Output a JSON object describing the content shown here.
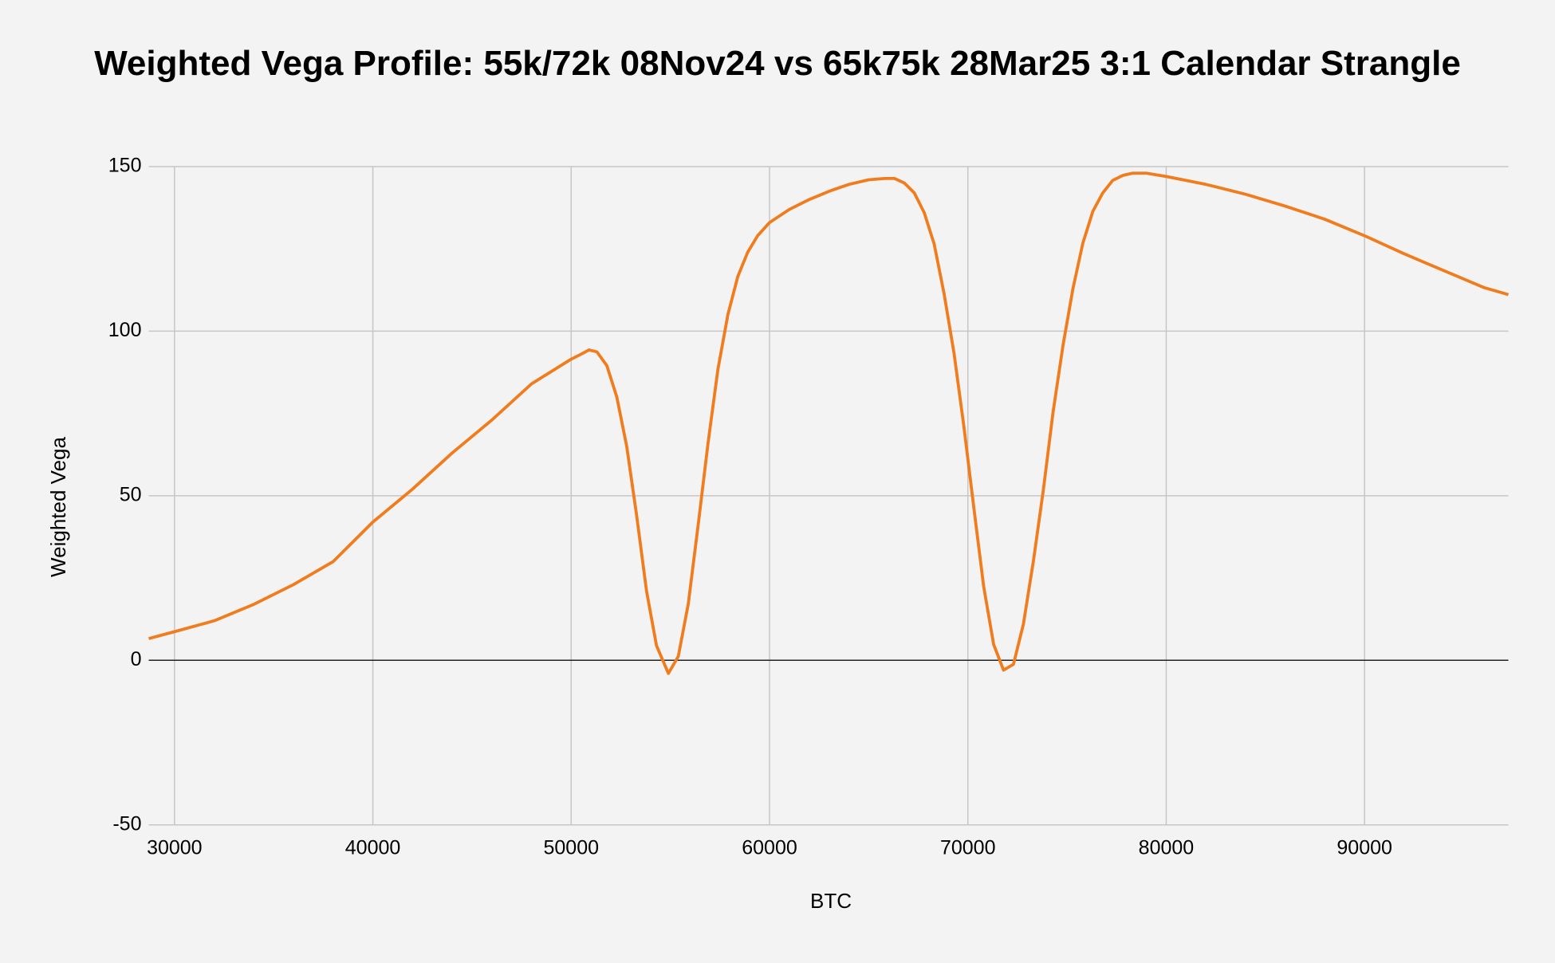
{
  "chart_data": {
    "type": "line",
    "title": "Weighted Vega Profile: 55k/72k 08Nov24 vs 65k75k 28Mar25 3:1 Calendar Strangle",
    "x_label": "BTC",
    "y_label": "Weighted Vega",
    "x": [
      28700,
      30000,
      32000,
      34000,
      36000,
      38000,
      40000,
      42000,
      44000,
      46000,
      48000,
      50000,
      50500,
      50900,
      51300,
      51800,
      52300,
      52800,
      53300,
      53800,
      54300,
      54900,
      55400,
      55900,
      56400,
      56900,
      57400,
      57900,
      58400,
      58900,
      59400,
      60000,
      61000,
      62000,
      63000,
      64000,
      65000,
      65800,
      66300,
      66800,
      67300,
      67800,
      68300,
      68800,
      69300,
      69800,
      70300,
      70800,
      71300,
      71800,
      72300,
      72800,
      73300,
      73800,
      74300,
      74800,
      75300,
      75800,
      76300,
      76800,
      77300,
      77800,
      78300,
      79000,
      80000,
      82000,
      84000,
      86000,
      88000,
      90000,
      92000,
      94000,
      96000,
      97250
    ],
    "series": [
      {
        "name": "Weighted Vega",
        "color": "#f07c1e",
        "values": [
          6.6,
          8.7,
          12,
          17,
          23,
          30,
          42,
          52,
          63,
          73,
          84,
          91.5,
          93,
          94.3,
          93.7,
          89.5,
          80,
          65,
          44,
          21,
          4.5,
          -4,
          1.2,
          17,
          41,
          66,
          88.5,
          105,
          116.6,
          124,
          129,
          133,
          137,
          140,
          142.5,
          144.6,
          146,
          146.4,
          146.4,
          145,
          142,
          136,
          126.5,
          111.4,
          93.4,
          71,
          46.4,
          22.3,
          4.8,
          -3,
          -1.2,
          11,
          30,
          51.5,
          75.6,
          95.8,
          113,
          126.8,
          136.4,
          142,
          145.8,
          147.3,
          148,
          148,
          147,
          144.6,
          141.6,
          138,
          134,
          129,
          123.5,
          118.4,
          113.3,
          111.1
        ]
      }
    ],
    "xlim": [
      28700,
      97250
    ],
    "ylim": [
      -50,
      150
    ],
    "xticks": [
      30000,
      40000,
      50000,
      60000,
      70000,
      80000,
      90000
    ],
    "yticks": [
      -50,
      0,
      50,
      100,
      150
    ],
    "grid": true,
    "legend": false
  }
}
